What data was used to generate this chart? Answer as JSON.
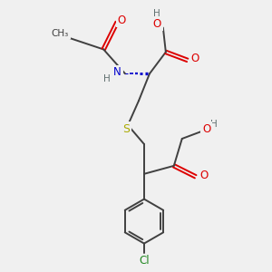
{
  "bg_color": "#f0f0f0",
  "colors": {
    "O": "#dd0000",
    "N": "#0000cc",
    "S": "#aaaa00",
    "Cl": "#228822",
    "C": "#404040",
    "H": "#607070",
    "bond": "#404040"
  },
  "figsize": [
    3.0,
    3.0
  ],
  "dpi": 100,
  "xlim": [
    0,
    10
  ],
  "ylim": [
    0,
    10
  ]
}
